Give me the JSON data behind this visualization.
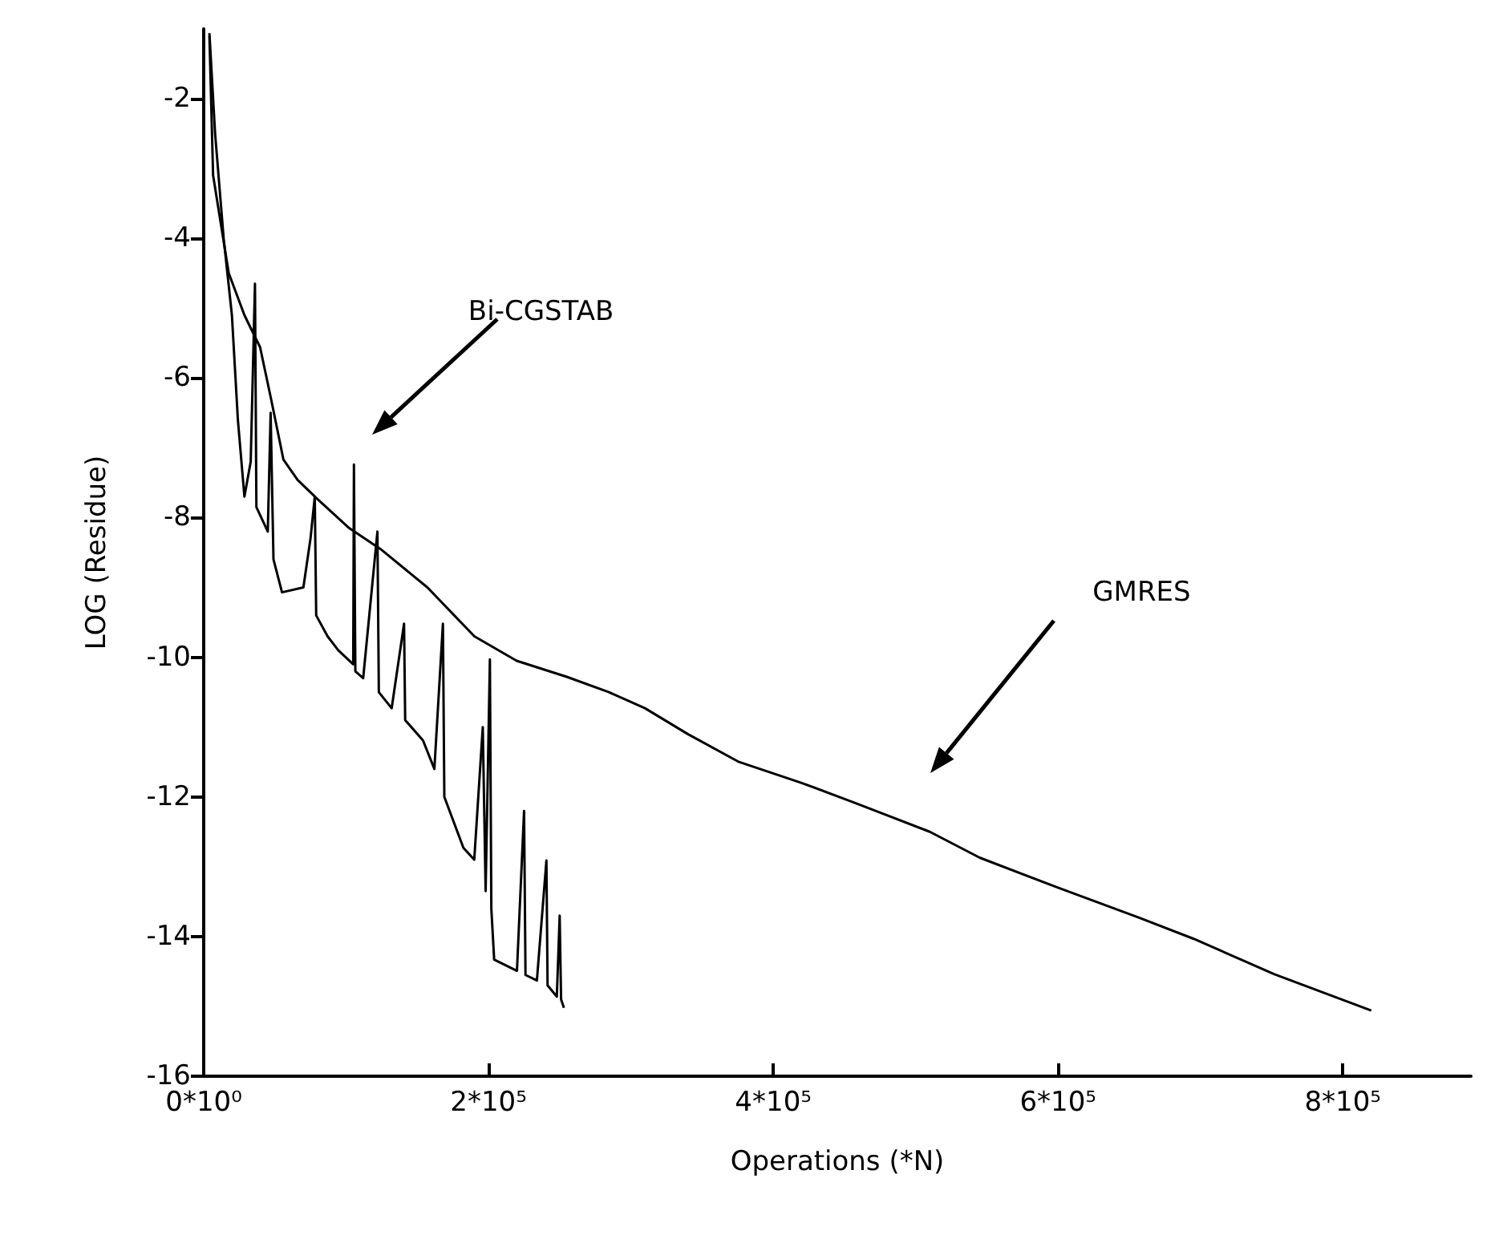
{
  "chart_data": {
    "type": "line",
    "xlabel": "Operations (*N)",
    "ylabel": "LOG (Residue)",
    "xlim": [
      0,
      890000
    ],
    "xticks": [
      {
        "value": 0,
        "label": "0*10⁰"
      },
      {
        "value": 200000,
        "label": "2*10⁵"
      },
      {
        "value": 400000,
        "label": "4*10⁵"
      },
      {
        "value": 600000,
        "label": "6*10⁵"
      },
      {
        "value": 800000,
        "label": "8*10⁵"
      }
    ],
    "ylim": [
      -16,
      -1
    ],
    "yticks": [
      -16,
      -14,
      -12,
      -10,
      -8,
      -6,
      -4,
      -2
    ],
    "annotations": [
      "Bi-CGSTAB",
      "GMRES"
    ],
    "grid": false,
    "marker": "none",
    "line_style": "solid",
    "series": [
      {
        "color": "#000000",
        "x": [
          4000,
          8000,
          14000,
          19800,
          24000,
          28600,
          33000,
          36000,
          37000,
          45000,
          47000,
          49000,
          55000,
          70000,
          75000,
          78000,
          79000,
          87000,
          94500,
          105000,
          105500,
          106500,
          112000,
          122000,
          123000,
          132000,
          140700,
          141500,
          154000,
          162000,
          168000,
          169000,
          182400,
          190000,
          196000,
          198000,
          201000,
          202000,
          204000,
          220000,
          225000,
          226000,
          234000,
          240700,
          241500,
          248000,
          250000,
          251000,
          253000
        ],
        "values": [
          -1.06,
          -2.5,
          -4.0,
          -5.1,
          -6.6,
          -7.7,
          -7.2,
          -4.65,
          -7.85,
          -8.2,
          -6.5,
          -8.6,
          -9.07,
          -9.0,
          -8.3,
          -7.7,
          -9.4,
          -9.7,
          -9.9,
          -10.1,
          -7.24,
          -10.2,
          -10.3,
          -8.2,
          -10.5,
          -10.73,
          -9.52,
          -10.9,
          -11.19,
          -11.6,
          -9.52,
          -12.0,
          -12.73,
          -12.9,
          -11.0,
          -13.35,
          -10.03,
          -13.6,
          -14.33,
          -14.49,
          -12.2,
          -14.55,
          -14.63,
          -12.91,
          -14.7,
          -14.86,
          -13.7,
          -14.9,
          -15.02
        ]
      },
      {
        "color": "#000000",
        "x": [
          4000,
          6600,
          17600,
          28600,
          39600,
          47300,
          56000,
          65900,
          80200,
          102200,
          124200,
          157100,
          190100,
          219800,
          255000,
          284600,
          309900,
          340000,
          376000,
          420000,
          458000,
          510000,
          545000,
          600000,
          657000,
          695000,
          752000,
          820000
        ],
        "values": [
          -1.1,
          -3.1,
          -4.5,
          -5.1,
          -5.56,
          -6.3,
          -7.17,
          -7.46,
          -7.74,
          -8.15,
          -8.45,
          -9.0,
          -9.7,
          -10.05,
          -10.28,
          -10.5,
          -10.73,
          -11.1,
          -11.5,
          -11.8,
          -12.09,
          -12.5,
          -12.87,
          -13.3,
          -13.73,
          -14.03,
          -14.54,
          -15.06
        ]
      }
    ]
  }
}
